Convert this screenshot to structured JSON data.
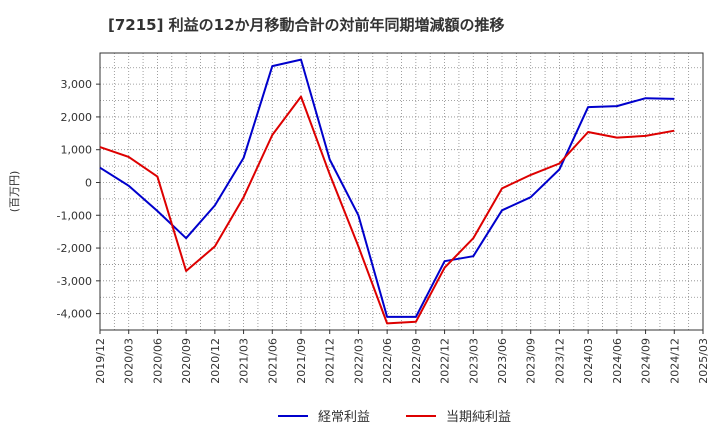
{
  "chart_data": {
    "type": "line",
    "title": "[7215]  利益の12か月移動合計の対前年同期増減額の推移",
    "ylabel": "(百万円)",
    "xlabel": "",
    "ylim": [
      -4500,
      3950
    ],
    "yticks": [
      3000,
      2000,
      1000,
      0,
      -1000,
      -2000,
      -3000,
      -4000
    ],
    "ytick_labels": [
      "3,000",
      "2,000",
      "1,000",
      "0",
      "-1,000",
      "-2,000",
      "-3,000",
      "-4,000"
    ],
    "categories": [
      "2019/12",
      "2020/03",
      "2020/06",
      "2020/09",
      "2020/12",
      "2021/03",
      "2021/06",
      "2021/09",
      "2021/12",
      "2022/03",
      "2022/06",
      "2022/09",
      "2022/12",
      "2023/03",
      "2023/06",
      "2023/09",
      "2023/12",
      "2024/03",
      "2024/06",
      "2024/09",
      "2024/12",
      "2025/03"
    ],
    "grid": true,
    "legend_position": "bottom",
    "series": [
      {
        "name": "経常利益",
        "color": "#0000cc",
        "values": [
          450,
          -100,
          -870,
          -1700,
          -700,
          750,
          3550,
          3750,
          700,
          -1000,
          -4100,
          -4100,
          -2400,
          -2250,
          -850,
          -450,
          400,
          2300,
          2330,
          2570,
          2550,
          null
        ]
      },
      {
        "name": "当期純利益",
        "color": "#dd0000",
        "values": [
          1080,
          780,
          180,
          -2700,
          -1950,
          -450,
          1450,
          2620,
          250,
          -1950,
          -4300,
          -4250,
          -2600,
          -1700,
          -180,
          230,
          580,
          1540,
          1370,
          1420,
          1580,
          null
        ]
      }
    ]
  }
}
